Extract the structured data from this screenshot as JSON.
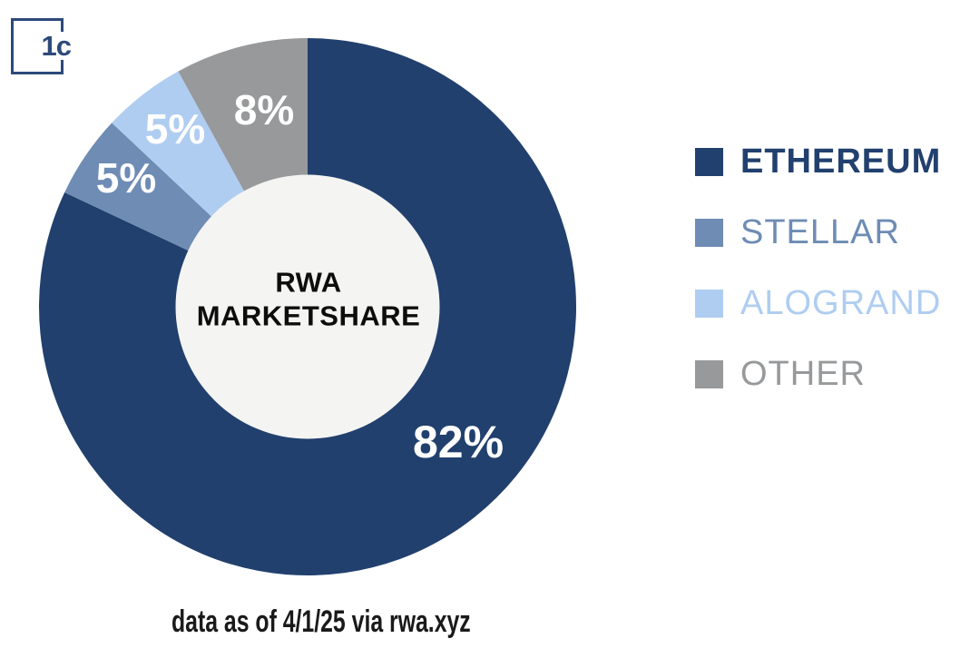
{
  "logo": {
    "text": "1c",
    "color": "#2c4a7a"
  },
  "chart_data": {
    "type": "pie",
    "subtype": "donut",
    "title": "RWA MARKETSHARE",
    "center_label": {
      "line1": "RWA",
      "line2": "MARKETSHARE"
    },
    "start_angle_deg": -90,
    "direction": "clockwise",
    "inner_radius_ratio": 0.49,
    "hole_color": "#f4f4f2",
    "label_color": "#ffffff",
    "legend_position": "right",
    "slices": [
      {
        "name": "ETHEREUM",
        "value": 82,
        "label": "82%",
        "color": "#21406e"
      },
      {
        "name": "STELLAR",
        "value": 5,
        "label": "5%",
        "color": "#6e8cb4"
      },
      {
        "name": "ALOGRAND",
        "value": 5,
        "label": "5%",
        "color": "#afcdf1"
      },
      {
        "name": "OTHER",
        "value": 8,
        "label": "8%",
        "color": "#97999b"
      }
    ]
  },
  "caption": {
    "text": "data as of 4/1/25 via rwa.xyz"
  }
}
